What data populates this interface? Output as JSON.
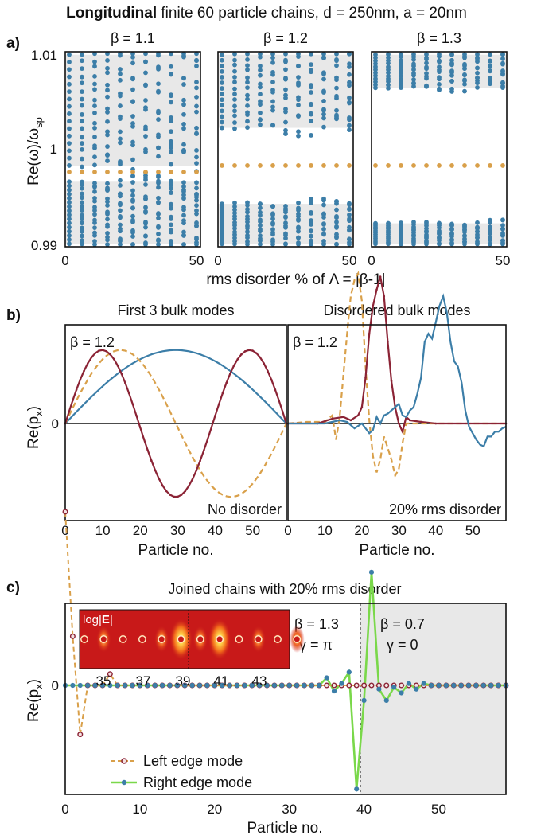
{
  "title": {
    "bold": "Longitudinal",
    "rest": " finite 60 particle chains, d = 250nm, a = 20nm"
  },
  "colors": {
    "blue": "#3c7ea8",
    "orange": "#d9a04a",
    "darkred": "#8b2335",
    "green": "#7ad84a",
    "gap": "#e8e8e8",
    "inset_bg": "#c81919"
  },
  "panel_labels": {
    "a": "a)",
    "b": "b)",
    "c": "c)"
  },
  "chart_data": [
    {
      "id": "a",
      "type": "scatter",
      "ylabel_main": "Re(ω)/ω",
      "ylabel_sub": "sp",
      "xlabel": "rms disorder % of Λ = |β-1|",
      "ylim": [
        0.99,
        1.01
      ],
      "xlim": [
        0,
        50
      ],
      "ytick_labels": [
        "0.99",
        "1",
        "1.01"
      ],
      "yticks": [
        0.99,
        1.0,
        1.01
      ],
      "xtick_labels": [
        "0",
        "50"
      ],
      "xticks": [
        0,
        50
      ],
      "x": [
        0,
        5,
        10,
        15,
        20,
        25,
        30,
        35,
        40,
        45,
        50
      ],
      "subplots": [
        {
          "title": "β = 1.1",
          "beta": 1.1,
          "bulk_band_lower": [
            0.9903,
            0.99667
          ],
          "bulk_band_upper": [
            0.99833,
            1.0097
          ],
          "edge_mode": 0.99767,
          "modes_per_band": 16
        },
        {
          "title": "β = 1.2",
          "beta": 1.2,
          "bulk_band_lower": [
            0.9903,
            0.9944
          ],
          "bulk_band_upper": [
            1.0022,
            1.0097
          ],
          "edge_mode": 0.99833,
          "modes_per_band": 14
        },
        {
          "title": "β = 1.3",
          "beta": 1.3,
          "bulk_band_lower": [
            0.9903,
            0.9924
          ],
          "bulk_band_upper": [
            1.0063,
            1.0097
          ],
          "edge_mode": 0.99833,
          "modes_per_band": 12
        }
      ]
    },
    {
      "id": "b",
      "type": "line",
      "ylabel": "Re(p_x)",
      "xlabel": "Particle no.",
      "xlim": [
        0,
        59
      ],
      "ylim": [
        -1.0,
        1.0
      ],
      "xticks": [
        0,
        10,
        20,
        30,
        40,
        50
      ],
      "xtick_labels": [
        "0",
        "10",
        "20",
        "30",
        "40",
        "50"
      ],
      "ytick_label": "0",
      "subplots": [
        {
          "title": "First 3 bulk modes",
          "annotation": "β = 1.2",
          "footer": "No disorder",
          "series": [
            {
              "color": "blue",
              "style": "solid",
              "kind": "sine",
              "n": 1,
              "amp": 0.45
            },
            {
              "color": "orange",
              "style": "dashed",
              "kind": "sine",
              "n": 2,
              "amp": 0.45
            },
            {
              "color": "darkred",
              "style": "solid",
              "kind": "sine",
              "n": 3,
              "amp": 0.45
            }
          ]
        },
        {
          "title": "Disordered bulk modes",
          "annotation": "β = 1.2",
          "footer": "20% rms disorder",
          "series": [
            {
              "color": "orange",
              "style": "dashed",
              "points": [
                [
                  0,
                  0
                ],
                [
                  5,
                  0.01
                ],
                [
                  10,
                  0.01
                ],
                [
                  12,
                  0.05
                ],
                [
                  13,
                  -0.1
                ],
                [
                  14,
                  0.04
                ],
                [
                  15,
                  0.3
                ],
                [
                  16,
                  0.55
                ],
                [
                  17,
                  0.78
                ],
                [
                  18,
                  0.88
                ],
                [
                  19,
                  0.92
                ],
                [
                  20,
                  0.75
                ],
                [
                  21,
                  0.35
                ],
                [
                  22,
                  0.02
                ],
                [
                  23,
                  -0.2
                ],
                [
                  24,
                  -0.3
                ],
                [
                  25,
                  -0.22
                ],
                [
                  26,
                  -0.08
                ],
                [
                  27,
                  -0.15
                ],
                [
                  28,
                  -0.22
                ],
                [
                  29,
                  -0.32
                ],
                [
                  30,
                  -0.28
                ],
                [
                  31,
                  -0.12
                ],
                [
                  32,
                  0.0
                ],
                [
                  35,
                  0.0
                ],
                [
                  59,
                  0.0
                ]
              ]
            },
            {
              "color": "darkred",
              "style": "solid",
              "points": [
                [
                  0,
                  0
                ],
                [
                  8,
                  0
                ],
                [
                  12,
                  0.03
                ],
                [
                  15,
                  0.04
                ],
                [
                  17,
                  0.02
                ],
                [
                  19,
                  0.05
                ],
                [
                  20,
                  0.1
                ],
                [
                  21,
                  0.28
                ],
                [
                  22,
                  0.55
                ],
                [
                  23,
                  0.72
                ],
                [
                  24,
                  0.82
                ],
                [
                  25,
                  0.9
                ],
                [
                  26,
                  0.78
                ],
                [
                  27,
                  0.5
                ],
                [
                  28,
                  0.26
                ],
                [
                  29,
                  0.1
                ],
                [
                  30,
                  0.0
                ],
                [
                  31,
                  -0.05
                ],
                [
                  32,
                  0.04
                ],
                [
                  33,
                  0.02
                ],
                [
                  36,
                  0.01
                ],
                [
                  40,
                  0.0
                ],
                [
                  59,
                  0.0
                ]
              ]
            },
            {
              "color": "blue",
              "style": "solid",
              "points": [
                [
                  0,
                  0
                ],
                [
                  10,
                  0
                ],
                [
                  14,
                  0.02
                ],
                [
                  16,
                  0.01
                ],
                [
                  18,
                  -0.03
                ],
                [
                  20,
                  0.0
                ],
                [
                  22,
                  -0.06
                ],
                [
                  23,
                  -0.04
                ],
                [
                  24,
                  0.04
                ],
                [
                  25,
                  0.0
                ],
                [
                  26,
                  0.05
                ],
                [
                  27,
                  0.06
                ],
                [
                  28,
                  0.08
                ],
                [
                  29,
                  0.1
                ],
                [
                  30,
                  0.12
                ],
                [
                  31,
                  0.05
                ],
                [
                  32,
                  0.04
                ],
                [
                  33,
                  0.08
                ],
                [
                  34,
                  0.1
                ],
                [
                  35,
                  0.18
                ],
                [
                  36,
                  0.28
                ],
                [
                  37,
                  0.5
                ],
                [
                  38,
                  0.55
                ],
                [
                  39,
                  0.52
                ],
                [
                  40,
                  0.62
                ],
                [
                  41,
                  0.72
                ],
                [
                  42,
                  0.78
                ],
                [
                  43,
                  0.68
                ],
                [
                  44,
                  0.5
                ],
                [
                  45,
                  0.38
                ],
                [
                  46,
                  0.35
                ],
                [
                  47,
                  0.25
                ],
                [
                  48,
                  0.08
                ],
                [
                  49,
                  -0.02
                ],
                [
                  50,
                  -0.06
                ],
                [
                  51,
                  -0.1
                ],
                [
                  52,
                  -0.13
                ],
                [
                  53,
                  -0.14
                ],
                [
                  54,
                  -0.08
                ],
                [
                  55,
                  -0.08
                ],
                [
                  56,
                  -0.05
                ],
                [
                  57,
                  -0.05
                ],
                [
                  58,
                  -0.03
                ],
                [
                  59,
                  -0.02
                ]
              ]
            }
          ]
        }
      ]
    },
    {
      "id": "c",
      "type": "line",
      "title": "Joined chains with 20% rms disorder",
      "ylabel": "Re(p_x)",
      "xlabel": "Particle no.",
      "xlim": [
        0,
        59
      ],
      "ylim": [
        -0.6,
        0.95
      ],
      "xticks": [
        0,
        10,
        20,
        30,
        40,
        50
      ],
      "xtick_labels": [
        "0",
        "10",
        "20",
        "30",
        "40",
        "50"
      ],
      "ytick_label": "0",
      "interface_x": 39.5,
      "left_region": {
        "beta": "β = 1.3",
        "gamma": "γ = π"
      },
      "right_region": {
        "beta": "β = 0.7",
        "gamma": "γ = 0"
      },
      "series": [
        {
          "name": "Left edge mode",
          "color": "orange",
          "marker": "darkred",
          "style": "dashed",
          "values": [
            0.92,
            0.26,
            -0.26,
            0.0,
            0.0,
            0.0,
            0.06,
            0.0,
            0.0,
            0.0,
            0.0,
            0.0,
            0.0,
            0.0,
            0.0,
            0.0,
            0.0,
            0.0,
            0.0,
            0.0,
            0.0,
            0.0,
            0.0,
            0.0,
            0.0,
            0.0,
            0.0,
            0.0,
            0.0,
            0.0,
            0.0,
            0.0,
            0.0,
            0.0,
            0.0,
            0.0,
            0.0,
            0.0,
            0.0,
            0.0,
            0.0,
            0.0,
            0.0,
            0.0,
            0.0,
            0.0,
            0.0,
            0.0,
            0.0,
            0.0,
            0.0,
            0.0,
            0.0,
            0.0,
            0.0,
            0.0,
            0.0,
            0.0,
            0.0,
            0.0
          ]
        },
        {
          "name": "Right edge mode",
          "color": "green",
          "marker": "blue",
          "style": "solid",
          "values": [
            0.0,
            0.0,
            0.0,
            0.0,
            0.0,
            0.0,
            0.0,
            0.0,
            0.0,
            0.0,
            0.0,
            0.0,
            0.0,
            0.0,
            0.0,
            0.0,
            0.0,
            0.0,
            0.0,
            0.0,
            0.0,
            0.0,
            0.0,
            0.0,
            0.0,
            0.0,
            0.0,
            0.0,
            0.0,
            0.0,
            0.0,
            0.0,
            0.0,
            0.0,
            0.0,
            0.04,
            -0.03,
            0.01,
            0.07,
            -0.55,
            -0.08,
            0.6,
            -0.02,
            -0.08,
            -0.01,
            -0.04,
            0.01,
            -0.02,
            0.01,
            0.0,
            0.0,
            0.0,
            0.0,
            0.0,
            0.0,
            0.0,
            0.0,
            0.0,
            0.0,
            0.0
          ]
        }
      ],
      "inset": {
        "label_prefix": "log|",
        "label_bold": "E",
        "label_suffix": "|",
        "tick_labels": [
          "35",
          "37",
          "39",
          "41",
          "43"
        ],
        "particles": [
          34,
          35,
          36,
          37,
          38,
          39,
          40,
          41,
          42,
          43,
          44,
          45
        ]
      }
    }
  ]
}
